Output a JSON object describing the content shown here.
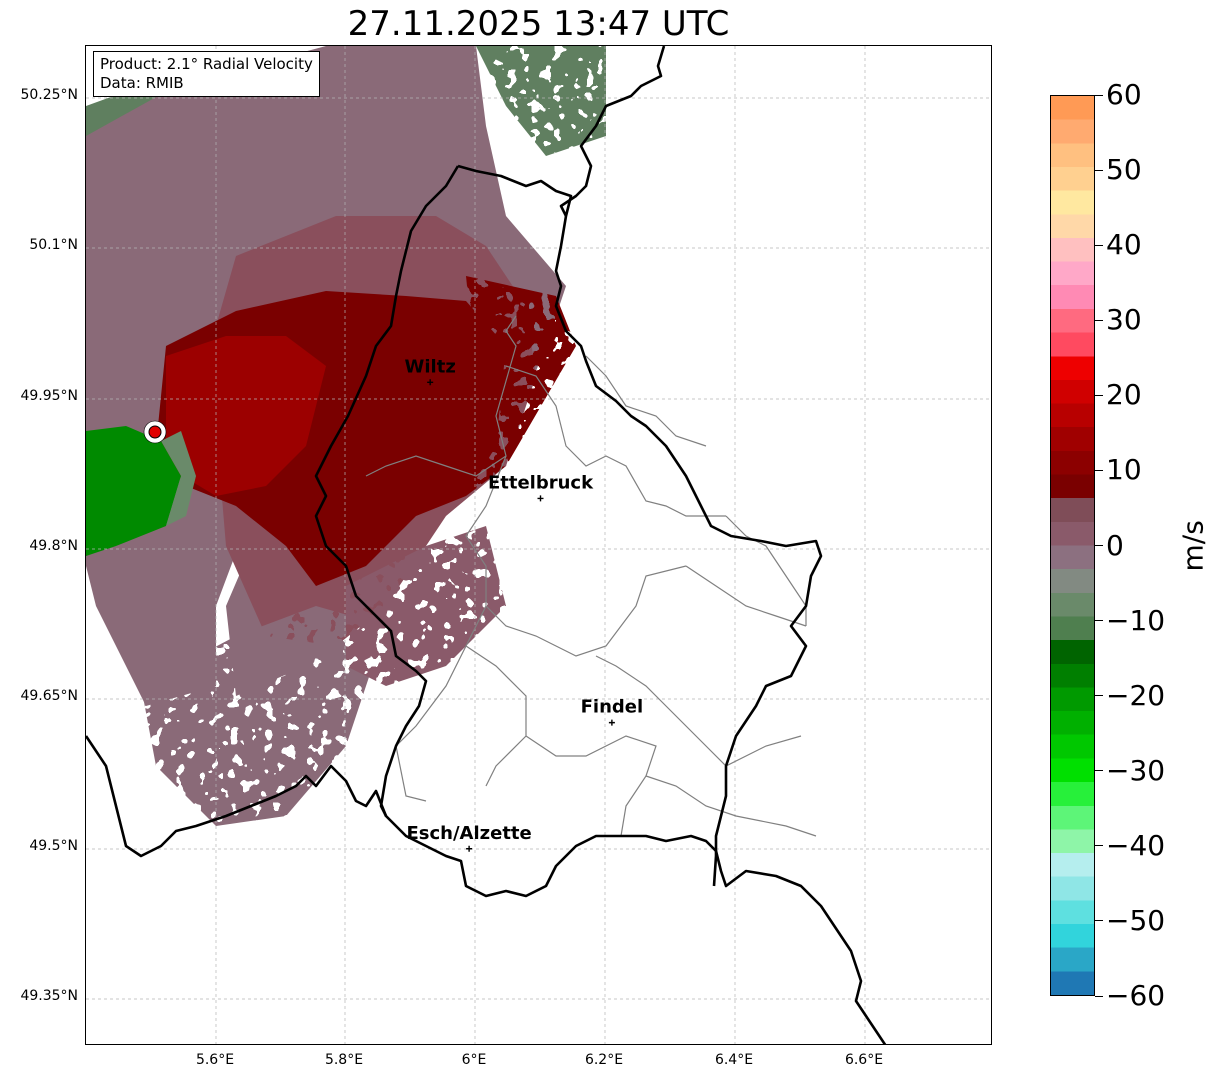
{
  "title": "27.11.2025 13:47 UTC",
  "info": {
    "product": "Product: 2.1° Radial Velocity",
    "source": "Data: RMIB"
  },
  "axes": {
    "lat_labels": [
      "50.25°N",
      "50.1°N",
      "49.95°N",
      "49.8°N",
      "49.65°N",
      "49.5°N",
      "49.35°N"
    ],
    "lon_labels": [
      "5.6°E",
      "5.8°E",
      "6°E",
      "6.2°E",
      "6.4°E",
      "6.6°E"
    ]
  },
  "cities": [
    {
      "name": "Wiltz",
      "lon": 5.93,
      "lat": 49.966
    },
    {
      "name": "Ettelbruck",
      "lon": 6.1,
      "lat": 49.85
    },
    {
      "name": "Findel",
      "lon": 6.21,
      "lat": 49.626
    },
    {
      "name": "Esch/Alzette",
      "lon": 5.99,
      "lat": 49.5
    }
  ],
  "radar_site": {
    "lon": 5.505,
    "lat": 49.914
  },
  "colorbar": {
    "unit": "m/s",
    "min": -60,
    "max": 60,
    "tick_labels": [
      "60",
      "50",
      "40",
      "30",
      "20",
      "10",
      "0",
      "−10",
      "−20",
      "−30",
      "−40",
      "−50",
      "−60"
    ],
    "colors": [
      "#1f78b4",
      "#2aa7c7",
      "#31d4dc",
      "#5ee0e0",
      "#8fe6e6",
      "#b5eeee",
      "#8ef5a8",
      "#5df578",
      "#27f03a",
      "#00e000",
      "#00c800",
      "#00b000",
      "#009a00",
      "#007f00",
      "#006400",
      "#4f7f4f",
      "#6a8a6a",
      "#828a82",
      "#8c7080",
      "#8a5a6a",
      "#7f4d58",
      "#7a0000",
      "#8c0000",
      "#a00000",
      "#b80000",
      "#d00000",
      "#ee0000",
      "#ff4a60",
      "#ff6a80",
      "#ff8ab4",
      "#ffa8c8",
      "#ffc0c0",
      "#ffd8a8",
      "#ffe8a0",
      "#ffd090",
      "#ffc080",
      "#ffaa70",
      "#ff9a55"
    ]
  }
}
